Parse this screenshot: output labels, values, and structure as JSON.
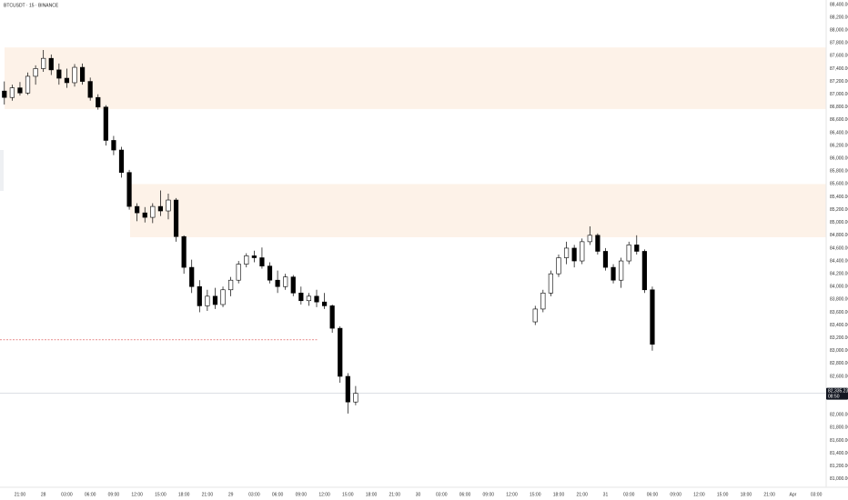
{
  "chart_data": {
    "type": "candlestick",
    "title": "BTCUSDT · 15 · BINANCE",
    "categories": [
      null,
      null,
      "21:00",
      null,
      null,
      "28",
      null,
      null,
      "03:00",
      null,
      null,
      "06:00",
      null,
      null,
      "09:00",
      null,
      null,
      "12:00",
      null,
      null,
      "15:00",
      null,
      null,
      "18:00",
      null,
      null,
      "21:00",
      null,
      null,
      "29",
      null,
      null,
      "03:00",
      null,
      null,
      "06:00",
      null,
      null,
      "09:00",
      null,
      null,
      "12:00",
      null,
      null,
      "15:00",
      null,
      null,
      "18:00",
      null,
      null,
      "21:00",
      null,
      null,
      "30",
      null,
      null,
      "03:00",
      null,
      null,
      "06:00",
      null,
      null,
      "09:00",
      null,
      null,
      "12:00",
      null,
      null,
      "15:00",
      null,
      null,
      "18:00",
      null,
      null,
      "21:00",
      null,
      null,
      "31",
      null,
      null,
      "03:00",
      null,
      null,
      "06:00",
      null,
      null,
      "09:00",
      null,
      null,
      "12:00",
      null,
      null,
      "15:00",
      null,
      null,
      "18:00",
      null,
      null,
      "21:00",
      null,
      null,
      "Apr",
      null,
      null,
      "03:00",
      null
    ],
    "open": [
      87050,
      86950,
      87100,
      87020,
      87280,
      87400,
      87560,
      87380,
      87250,
      87180,
      87420,
      87200,
      86950,
      86800,
      86280,
      86130,
      85780,
      85250,
      85150,
      85080,
      85250,
      85180,
      85350,
      84780,
      84300,
      84000,
      83700,
      83850,
      83720,
      83950,
      84100,
      84350,
      84480,
      84450,
      84320,
      84100,
      84000,
      84150,
      83900,
      83780,
      83850,
      83760,
      83700,
      83350,
      82600,
      82200,
      null,
      null,
      null,
      null,
      null,
      null,
      null,
      null,
      null,
      null,
      null,
      null,
      null,
      null,
      null,
      null,
      null,
      null,
      null,
      null,
      null,
      null,
      83450,
      83650,
      83900,
      84200,
      84450,
      84600,
      84400,
      84700,
      84800,
      84550,
      84300,
      84100,
      84400,
      84650,
      84550,
      83950,
      null,
      null,
      null,
      null,
      null,
      null,
      null,
      null,
      null,
      null,
      null,
      null,
      null,
      null,
      null,
      null,
      null,
      null,
      null,
      null,
      null,
      null
    ],
    "high": [
      87200,
      87150,
      87190,
      87340,
      87450,
      87690,
      87620,
      87480,
      87400,
      87470,
      87480,
      87260,
      87000,
      86830,
      86350,
      86180,
      85820,
      85300,
      85240,
      85300,
      85500,
      85450,
      85380,
      84800,
      84420,
      84100,
      83950,
      83980,
      84000,
      84150,
      84400,
      84520,
      84560,
      84610,
      84380,
      84250,
      84200,
      84180,
      84000,
      83900,
      83950,
      83900,
      83720,
      83380,
      82650,
      82450,
      null,
      null,
      null,
      null,
      null,
      null,
      null,
      null,
      null,
      null,
      null,
      null,
      null,
      null,
      null,
      null,
      null,
      null,
      null,
      null,
      null,
      null,
      83700,
      83950,
      84250,
      84500,
      84700,
      84650,
      84750,
      84940,
      84830,
      84600,
      84350,
      84450,
      84700,
      84800,
      84580,
      84000,
      null,
      null,
      null,
      null,
      null,
      null,
      null,
      null,
      null,
      null,
      null,
      null,
      null,
      null,
      null,
      null,
      null,
      null,
      null,
      null,
      null,
      null
    ],
    "low": [
      86840,
      86900,
      86980,
      86990,
      87150,
      87350,
      87300,
      87150,
      87100,
      87120,
      87150,
      86900,
      86760,
      86200,
      86050,
      85700,
      85200,
      85020,
      85000,
      84990,
      85100,
      85050,
      84700,
      84200,
      83900,
      83600,
      83620,
      83650,
      83680,
      83850,
      84050,
      84300,
      84380,
      84280,
      84050,
      83900,
      83950,
      83850,
      83720,
      83700,
      83680,
      83650,
      83280,
      82500,
      82020,
      82150,
      null,
      null,
      null,
      null,
      null,
      null,
      null,
      null,
      null,
      null,
      null,
      null,
      null,
      null,
      null,
      null,
      null,
      null,
      null,
      null,
      null,
      null,
      83400,
      83600,
      83850,
      84150,
      84350,
      84300,
      84350,
      84650,
      84500,
      84250,
      84050,
      83980,
      84350,
      84500,
      83900,
      83000,
      null,
      null,
      null,
      null,
      null,
      null,
      null,
      null,
      null,
      null,
      null,
      null,
      null,
      null,
      null,
      null,
      null,
      null,
      null,
      null,
      null,
      null
    ],
    "close": [
      86950,
      87100,
      87020,
      87280,
      87400,
      87560,
      87380,
      87250,
      87180,
      87420,
      87200,
      86950,
      86800,
      86280,
      86130,
      85780,
      85250,
      85150,
      85080,
      85250,
      85180,
      85350,
      84780,
      84300,
      84000,
      83700,
      83850,
      83720,
      83950,
      84100,
      84350,
      84480,
      84450,
      84320,
      84100,
      84000,
      84150,
      83900,
      83780,
      83850,
      83760,
      83700,
      83350,
      82600,
      82200,
      82335.23,
      null,
      null,
      null,
      null,
      null,
      null,
      null,
      null,
      null,
      null,
      null,
      null,
      null,
      null,
      null,
      null,
      null,
      null,
      null,
      null,
      null,
      null,
      83650,
      83900,
      84200,
      84450,
      84600,
      84400,
      84700,
      84800,
      84550,
      84300,
      84100,
      84400,
      84650,
      84550,
      83950,
      83100,
      null,
      null,
      null,
      null,
      null,
      null,
      null,
      null,
      null,
      null,
      null,
      null,
      null,
      null,
      null,
      null,
      null,
      null,
      null,
      null,
      null,
      null
    ],
    "up_color": "#ffffff",
    "down_color": "#000000",
    "zones": [
      {
        "top": 87730,
        "bottom": 86770
      },
      {
        "top": 85600,
        "bottom": 84770
      }
    ],
    "zone_color": "#fdf2e8",
    "levels": [
      {
        "value": 83170,
        "color": "#d94a4a"
      }
    ],
    "price_label": {
      "value": 82335.23,
      "label": "82,335.23"
    },
    "countdown": "08:50",
    "ylim": [
      80870,
      88470
    ],
    "yticks": [
      {
        "value": 88400,
        "label": "88,400.00"
      },
      {
        "value": 88200,
        "label": "88,200.00"
      },
      {
        "value": 88000,
        "label": "88,000.00"
      },
      {
        "value": 87800,
        "label": "87,800.00"
      },
      {
        "value": 87600,
        "label": "87,600.00"
      },
      {
        "value": 87400,
        "label": "87,400.00"
      },
      {
        "value": 87200,
        "label": "87,200.00"
      },
      {
        "value": 87000,
        "label": "87,000.00"
      },
      {
        "value": 86800,
        "label": "86,800.00"
      },
      {
        "value": 86600,
        "label": "86,600.00"
      },
      {
        "value": 86400,
        "label": "86,400.00"
      },
      {
        "value": 86200,
        "label": "86,200.00"
      },
      {
        "value": 86000,
        "label": "86,000.00"
      },
      {
        "value": 85800,
        "label": "85,800.00"
      },
      {
        "value": 85600,
        "label": "85,600.00"
      },
      {
        "value": 85400,
        "label": "85,400.00"
      },
      {
        "value": 85200,
        "label": "85,200.00"
      },
      {
        "value": 85000,
        "label": "85,000.00"
      },
      {
        "value": 84800,
        "label": "84,800.00"
      },
      {
        "value": 84600,
        "label": "84,600.00"
      },
      {
        "value": 84400,
        "label": "84,400.00"
      },
      {
        "value": 84200,
        "label": "84,200.00"
      },
      {
        "value": 84000,
        "label": "84,000.00"
      },
      {
        "value": 83800,
        "label": "83,800.00"
      },
      {
        "value": 83600,
        "label": "83,600.00"
      },
      {
        "value": 83400,
        "label": "83,400.00"
      },
      {
        "value": 83200,
        "label": "83,200.00"
      },
      {
        "value": 83000,
        "label": "83,000.00"
      },
      {
        "value": 82800,
        "label": "82,800.00"
      },
      {
        "value": 82600,
        "label": "82,600.00"
      },
      {
        "value": 82000,
        "label": "82,000.00"
      },
      {
        "value": 81800,
        "label": "81,800.00"
      },
      {
        "value": 81600,
        "label": "81,600.00"
      },
      {
        "value": 81400,
        "label": "81,400.00"
      },
      {
        "value": 81200,
        "label": "81,200.00"
      },
      {
        "value": 81000,
        "label": "81,000.00"
      }
    ],
    "grid": false
  }
}
